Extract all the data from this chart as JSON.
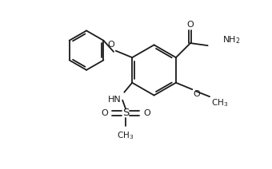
{
  "bg_color": "#ffffff",
  "line_color": "#1a1a1a",
  "line_width": 1.3,
  "font_size": 8.0,
  "figsize": [
    3.4,
    2.12
  ],
  "dpi": 100,
  "xlim": [
    -0.5,
    10.0
  ],
  "ylim": [
    -0.5,
    6.5
  ]
}
